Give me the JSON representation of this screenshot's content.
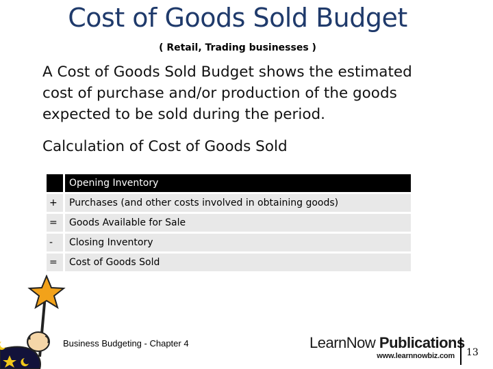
{
  "slide": {
    "title": "Cost of Goods Sold Budget",
    "subtitle": "( Retail, Trading businesses )",
    "paragraphs": [
      "A Cost of Goods Sold Budget shows the estimated",
      "cost of purchase and/or production of the goods",
      "expected to be sold during the period."
    ],
    "calc_heading": "Calculation of Cost of Goods Sold",
    "table": {
      "header": {
        "symbol": "",
        "label": "Opening Inventory"
      },
      "rows": [
        {
          "symbol": "+",
          "label": "Purchases (and other costs involved in obtaining goods)"
        },
        {
          "symbol": "=",
          "label": "Goods Available for Sale"
        },
        {
          "symbol": "-",
          "label": "Closing Inventory"
        },
        {
          "symbol": "=",
          "label": "Cost of Goods Sold"
        }
      ]
    },
    "colors": {
      "title": "#1f3a6b",
      "header_bg": "#000000",
      "row_bg": "#e8e8e8"
    }
  },
  "footer": {
    "chapter": "Business Budgeting - Chapter 4",
    "logo_learn_now": "LearnNow",
    "logo_publications": "Publications",
    "logo_url": "www.learnnowbiz.com",
    "page_number": "13"
  },
  "icons": {
    "wizard": "wizard-with-star-wand-icon"
  }
}
